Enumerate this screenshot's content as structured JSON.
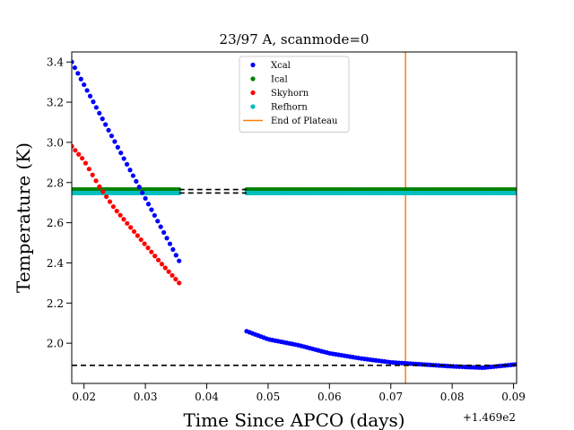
{
  "chart_data": {
    "type": "scatter",
    "title": "23/97 A, scanmode=0",
    "xlabel": "Time Since APCO (days)",
    "ylabel": "Temperature (K)",
    "x_offset_label": "+1.469e2",
    "xlim": [
      0.018,
      0.0905
    ],
    "ylim": [
      1.8,
      3.45
    ],
    "xticks": [
      0.02,
      0.03,
      0.04,
      0.05,
      0.06,
      0.07,
      0.08,
      0.09
    ],
    "xtick_labels": [
      "0.02",
      "0.03",
      "0.04",
      "0.05",
      "0.06",
      "0.07",
      "0.08",
      "0.09"
    ],
    "yticks": [
      2.0,
      2.2,
      2.4,
      2.6,
      2.8,
      3.0,
      3.2,
      3.4
    ],
    "ytick_labels": [
      "2.0",
      "2.2",
      "2.4",
      "2.6",
      "2.8",
      "3.0",
      "3.2",
      "3.4"
    ],
    "grid": false,
    "legend_position": "top-center",
    "series": [
      {
        "name": "Xcal",
        "color": "#0000ff",
        "marker": "dot",
        "segments": [
          {
            "x_start": 0.018,
            "x_end": 0.0355,
            "n": 36,
            "points": [
              [
                0.018,
                3.4
              ],
              [
                0.0355,
                2.41
              ]
            ],
            "curve": "linear"
          },
          {
            "x_start": 0.0465,
            "x_end": 0.0905,
            "n": 95,
            "points": [
              [
                0.0465,
                2.06
              ],
              [
                0.05,
                2.02
              ],
              [
                0.055,
                1.99
              ],
              [
                0.06,
                1.95
              ],
              [
                0.065,
                1.925
              ],
              [
                0.07,
                1.905
              ],
              [
                0.075,
                1.895
              ],
              [
                0.08,
                1.885
              ],
              [
                0.085,
                1.878
              ],
              [
                0.0905,
                1.895
              ]
            ],
            "curve": "piecewise"
          }
        ]
      },
      {
        "name": "Ical",
        "color": "#008000",
        "marker": "dot",
        "segments": [
          {
            "x_start": 0.018,
            "x_end": 0.0355,
            "n": 60,
            "points": [
              [
                0.018,
                2.765
              ],
              [
                0.0355,
                2.765
              ]
            ],
            "curve": "linear"
          },
          {
            "x_start": 0.0465,
            "x_end": 0.0905,
            "n": 140,
            "points": [
              [
                0.0465,
                2.765
              ],
              [
                0.0905,
                2.765
              ]
            ],
            "curve": "linear"
          }
        ]
      },
      {
        "name": "Skyhorn",
        "color": "#ff0000",
        "marker": "dot",
        "segments": [
          {
            "x_start": 0.018,
            "x_end": 0.0355,
            "n": 32,
            "points": [
              [
                0.018,
                2.98
              ],
              [
                0.02,
                2.91
              ],
              [
                0.0225,
                2.78
              ],
              [
                0.025,
                2.67
              ],
              [
                0.0275,
                2.58
              ],
              [
                0.03,
                2.49
              ],
              [
                0.0325,
                2.4
              ],
              [
                0.0355,
                2.3
              ]
            ],
            "curve": "piecewise"
          }
        ]
      },
      {
        "name": "Refhorn",
        "color": "#00bfbf",
        "marker": "dot",
        "segments": [
          {
            "x_start": 0.018,
            "x_end": 0.0355,
            "n": 60,
            "points": [
              [
                0.018,
                2.748
              ],
              [
                0.0355,
                2.748
              ]
            ],
            "curve": "linear"
          },
          {
            "x_start": 0.0465,
            "x_end": 0.0905,
            "n": 140,
            "points": [
              [
                0.0465,
                2.748
              ],
              [
                0.0905,
                2.748
              ]
            ],
            "curve": "linear"
          }
        ]
      }
    ],
    "reference_lines": [
      {
        "name": "End of Plateau",
        "type": "vertical",
        "x": 0.0724,
        "color": "#ff7f0e",
        "in_legend": true
      },
      {
        "type": "horizontal-dashed",
        "y": 2.765,
        "x_range": [
          0.0355,
          0.0465
        ],
        "color": "#000000"
      },
      {
        "type": "horizontal-dashed",
        "y": 2.748,
        "x_range": [
          0.0355,
          0.0465
        ],
        "color": "#000000"
      },
      {
        "type": "horizontal-dashed",
        "y": 1.89,
        "x_range": [
          0.018,
          0.0905
        ],
        "color": "#000000"
      }
    ]
  }
}
